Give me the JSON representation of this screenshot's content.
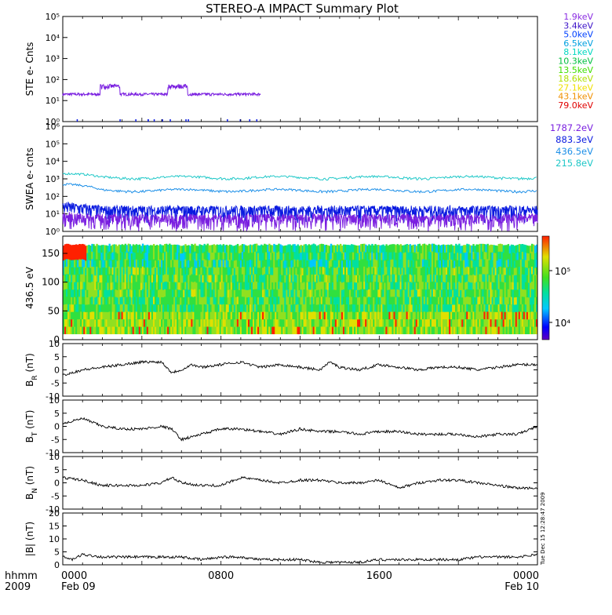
{
  "title": "STEREO-A IMPACT Summary Plot",
  "timestamp": "Tue Dec 15 12:28:47 2009",
  "colors": {
    "axis": "#000000",
    "purple": "#7a1fe0",
    "blue": "#0a1ae0",
    "teal": "#20c8c8",
    "cyan_blue": "#1e90e8"
  },
  "chart_data": [
    {
      "type": "line",
      "panel": "ste",
      "ylabel": "STE e- Cnts",
      "yscale": "log",
      "ylim": [
        1,
        100000
      ],
      "yticks": [
        "10⁰",
        "10¹",
        "10²",
        "10³",
        "10⁴",
        "10⁵"
      ],
      "legend": [
        {
          "label": "1.9keV",
          "color": "#8a2be2"
        },
        {
          "label": "3.4keV",
          "color": "#3a10c8"
        },
        {
          "label": "5.0keV",
          "color": "#0040ff"
        },
        {
          "label": "6.5keV",
          "color": "#00a0e0"
        },
        {
          "label": "8.1keV",
          "color": "#00d8c0"
        },
        {
          "label": "10.3keV",
          "color": "#00c040"
        },
        {
          "label": "13.5keV",
          "color": "#40e000"
        },
        {
          "label": "18.6keV",
          "color": "#b0e000"
        },
        {
          "label": "27.1keV",
          "color": "#f0e000"
        },
        {
          "label": "43.1keV",
          "color": "#f09000"
        },
        {
          "label": "79.0keV",
          "color": "#e00000"
        }
      ],
      "series": [
        {
          "name": "1.9keV",
          "color": "#7a1fe0",
          "baseline": 20,
          "end_hour": 10,
          "bursts": [
            [
              2.4,
              60
            ],
            [
              5.8,
              60
            ]
          ]
        }
      ]
    },
    {
      "type": "line",
      "panel": "swea",
      "ylabel": "SWEA e- cnts",
      "yscale": "log",
      "ylim": [
        1,
        1000000
      ],
      "yticks": [
        "10⁰",
        "10¹",
        "10²",
        "10³",
        "10⁴",
        "10⁵",
        "10⁶"
      ],
      "legend": [
        {
          "label": "1787.2eV",
          "color": "#7a1fe0"
        },
        {
          "label": "883.3eV",
          "color": "#0a1ae0"
        },
        {
          "label": "436.5eV",
          "color": "#1e90e8"
        },
        {
          "label": "215.8eV",
          "color": "#20c8c8"
        }
      ],
      "series": [
        {
          "name": "215.8eV",
          "color": "#20c8c8",
          "start": 2000,
          "level": 1200
        },
        {
          "name": "436.5eV",
          "color": "#1e90e8",
          "start": 500,
          "level": 220
        },
        {
          "name": "883.3eV",
          "color": "#0a1ae0",
          "start": 20,
          "level": 12
        },
        {
          "name": "1787.2eV",
          "color": "#7a1fe0",
          "start": 5,
          "level": 4
        }
      ]
    },
    {
      "type": "heatmap",
      "panel": "pad",
      "ylabel": "436.5 eV",
      "ylim": [
        0,
        180
      ],
      "yticks": [
        "0",
        "50",
        "100",
        "150"
      ],
      "colorbar": {
        "ticks": [
          "10⁵",
          "10⁴"
        ]
      }
    },
    {
      "type": "line",
      "panel": "br",
      "ylabel": "B_R (nT)",
      "ylabel_main": "B",
      "ylabel_sub": "R",
      "ylabel_unit": " (nT)",
      "ylim": [
        -10,
        10
      ],
      "yticks": [
        "10",
        "5",
        "0",
        "-5",
        "-10"
      ],
      "x": [
        0,
        0.5,
        1,
        2,
        3,
        4,
        5,
        5.5,
        6,
        6.5,
        7,
        8,
        9,
        10,
        11,
        12,
        13,
        13.5,
        14,
        15,
        16,
        17,
        18,
        19,
        20,
        21,
        22,
        23,
        24
      ],
      "values": [
        -2,
        -1,
        0,
        1,
        2,
        3,
        3,
        -1,
        0,
        2,
        1,
        2,
        3,
        1,
        2,
        1,
        0,
        3,
        1,
        0,
        2,
        1,
        0,
        1,
        1,
        0,
        1,
        2,
        2
      ]
    },
    {
      "type": "line",
      "panel": "bt",
      "ylabel": "B_T (nT)",
      "ylabel_main": "B",
      "ylabel_sub": "T",
      "ylabel_unit": " (nT)",
      "ylim": [
        -10,
        10
      ],
      "yticks": [
        "10",
        "5",
        "0",
        "-5",
        "-10"
      ],
      "x": [
        0,
        1,
        2,
        3,
        4,
        5,
        5.5,
        6,
        7,
        8,
        9,
        10,
        11,
        12,
        13,
        14,
        15,
        16,
        17,
        18,
        19,
        20,
        21,
        22,
        23,
        24
      ],
      "values": [
        1,
        3,
        0,
        -1,
        -1,
        0,
        -1,
        -5,
        -3,
        -1,
        -1,
        -2,
        -3,
        -1,
        -2,
        -2,
        -3,
        -2,
        -2,
        -3,
        -3,
        -3,
        -4,
        -3,
        -3,
        0
      ]
    },
    {
      "type": "line",
      "panel": "bn",
      "ylabel": "B_N (nT)",
      "ylabel_main": "B",
      "ylabel_sub": "N",
      "ylabel_unit": " (nT)",
      "ylim": [
        -10,
        10
      ],
      "yticks": [
        "10",
        "5",
        "0",
        "-5",
        "-10"
      ],
      "x": [
        0,
        1,
        2,
        3,
        4,
        5,
        5.5,
        6,
        7,
        8,
        9,
        10,
        11,
        12,
        13,
        14,
        15,
        16,
        17,
        18,
        19,
        20,
        21,
        22,
        23,
        24
      ],
      "values": [
        2,
        1,
        -1,
        -1,
        -1,
        0,
        2,
        0,
        -1,
        -1,
        2,
        1,
        0,
        1,
        1,
        0,
        0,
        1,
        -2,
        0,
        1,
        1,
        0,
        -1,
        -2,
        -2
      ]
    },
    {
      "type": "line",
      "panel": "bmag",
      "ylabel": "|B| (nT)",
      "ylim": [
        0,
        20
      ],
      "yticks": [
        "20",
        "15",
        "10",
        "5",
        "0"
      ],
      "x": [
        0,
        0.5,
        1,
        2,
        3,
        4,
        5,
        6,
        7,
        8,
        9,
        10,
        11,
        12,
        13,
        14,
        15,
        16,
        17,
        18,
        19,
        20,
        21,
        22,
        23,
        24
      ],
      "values": [
        3,
        2,
        4,
        3,
        3,
        3,
        3,
        3,
        2,
        3,
        3,
        2,
        2,
        2,
        1,
        1,
        1,
        2,
        2,
        2,
        2,
        2,
        3,
        3,
        3,
        4
      ]
    }
  ],
  "xaxis": {
    "ticks": [
      {
        "label": "0000",
        "sub": "Feb 09",
        "hour": 0
      },
      {
        "label": "0800",
        "sub": "",
        "hour": 8
      },
      {
        "label": "1600",
        "sub": "",
        "hour": 16
      },
      {
        "label": "0000",
        "sub": "Feb 10",
        "hour": 24
      }
    ],
    "corner_top": "hhmm",
    "corner_bottom": "2009",
    "range": [
      0,
      24
    ]
  }
}
